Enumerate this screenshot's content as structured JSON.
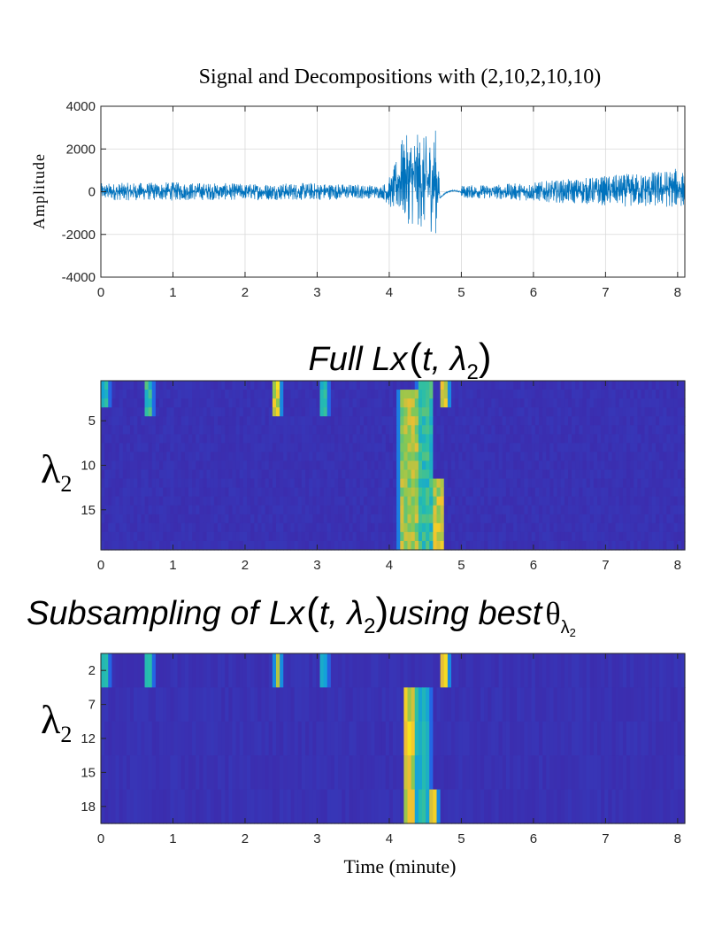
{
  "chart_data": [
    {
      "type": "line",
      "title": "Signal and Decompositions with (2,10,2,10,10)",
      "xlabel": "",
      "ylabel": "Amplitude",
      "xlim": [
        0,
        8.1
      ],
      "ylim": [
        -4000,
        4000
      ],
      "x_ticks": [
        "0",
        "1",
        "2",
        "3",
        "4",
        "5",
        "6",
        "7",
        "8"
      ],
      "y_ticks": [
        "4000",
        "2000",
        "0",
        "-2000",
        "-4000"
      ],
      "series_color": "#0072bd",
      "envelope": {
        "x": [
          0,
          1,
          2,
          3,
          3.9,
          4.05,
          4.15,
          4.3,
          4.5,
          4.65,
          4.7,
          4.85,
          5.0,
          5.5,
          6.0,
          6.5,
          7.0,
          7.5,
          8.0,
          8.1
        ],
        "upper": [
          400,
          450,
          380,
          420,
          300,
          900,
          2400,
          2800,
          2600,
          3000,
          300,
          100,
          300,
          350,
          450,
          600,
          750,
          900,
          1100,
          900
        ],
        "lower": [
          -400,
          -420,
          -380,
          -400,
          -300,
          -900,
          -1200,
          -1600,
          -1800,
          -2000,
          -400,
          -600,
          -300,
          -350,
          -450,
          -550,
          -650,
          -750,
          -750,
          -700
        ]
      }
    },
    {
      "type": "heatmap",
      "title": "Full Lx(t, λ₂)",
      "title_main": "Full Lx",
      "title_arg": "t, λ",
      "title_sub": "2",
      "ylabel": "λ",
      "ylabel_sub": "2",
      "xlim": [
        0,
        8.1
      ],
      "x_ticks": [
        "0",
        "1",
        "2",
        "3",
        "4",
        "5",
        "6",
        "7",
        "8"
      ],
      "y_ticks": [
        "5",
        "10",
        "15"
      ],
      "rows": 19,
      "colormap": "parula",
      "hotspots": [
        {
          "x0": 0.0,
          "x1": 0.12,
          "r0": 1,
          "r1": 3,
          "v": 0.55
        },
        {
          "x0": 0.62,
          "x1": 0.72,
          "r0": 1,
          "r1": 4,
          "v": 0.6
        },
        {
          "x0": 2.4,
          "x1": 2.5,
          "r0": 1,
          "r1": 4,
          "v": 0.9
        },
        {
          "x0": 3.05,
          "x1": 3.15,
          "r0": 1,
          "r1": 4,
          "v": 0.55
        },
        {
          "x0": 4.15,
          "x1": 4.4,
          "r0": 2,
          "r1": 19,
          "v": 0.8
        },
        {
          "x0": 4.4,
          "x1": 4.6,
          "r0": 1,
          "r1": 19,
          "v": 0.6
        },
        {
          "x0": 4.6,
          "x1": 4.75,
          "r0": 12,
          "r1": 19,
          "v": 0.85
        },
        {
          "x0": 4.72,
          "x1": 4.82,
          "r0": 1,
          "r1": 3,
          "v": 0.9
        }
      ]
    },
    {
      "type": "heatmap",
      "title": "Subsampling of Lx(t, λ₂) using best θλ₂",
      "title_main": "Subsampling of",
      "title_lx": "Lx",
      "title_arg": "t, λ",
      "title_sub": "2",
      "title_tail": "using best",
      "title_theta": "θ",
      "title_theta_sub": "λ",
      "title_theta_subsub": "2",
      "ylabel": "λ",
      "ylabel_sub": "2",
      "xlim": [
        0,
        8.1
      ],
      "x_ticks": [
        "0",
        "1",
        "2",
        "3",
        "4",
        "5",
        "6",
        "7",
        "8"
      ],
      "y_ticks": [
        "2",
        "7",
        "12",
        "15",
        "18"
      ],
      "rows": 5,
      "xlabel": "Time (minute)",
      "colormap": "parula",
      "hotspots": [
        {
          "x0": 0.0,
          "x1": 0.12,
          "r0": 1,
          "r1": 1,
          "v": 0.55
        },
        {
          "x0": 0.62,
          "x1": 0.72,
          "r0": 1,
          "r1": 1,
          "v": 0.55
        },
        {
          "x0": 2.42,
          "x1": 2.5,
          "r0": 1,
          "r1": 1,
          "v": 0.95
        },
        {
          "x0": 3.05,
          "x1": 3.15,
          "r0": 1,
          "r1": 1,
          "v": 0.5
        },
        {
          "x0": 4.22,
          "x1": 4.36,
          "r0": 2,
          "r1": 5,
          "v": 0.9
        },
        {
          "x0": 4.36,
          "x1": 4.58,
          "r0": 2,
          "r1": 5,
          "v": 0.55
        },
        {
          "x0": 4.56,
          "x1": 4.66,
          "r0": 5,
          "r1": 5,
          "v": 0.9
        },
        {
          "x0": 4.72,
          "x1": 4.82,
          "r0": 1,
          "r1": 1,
          "v": 0.9
        }
      ]
    }
  ]
}
